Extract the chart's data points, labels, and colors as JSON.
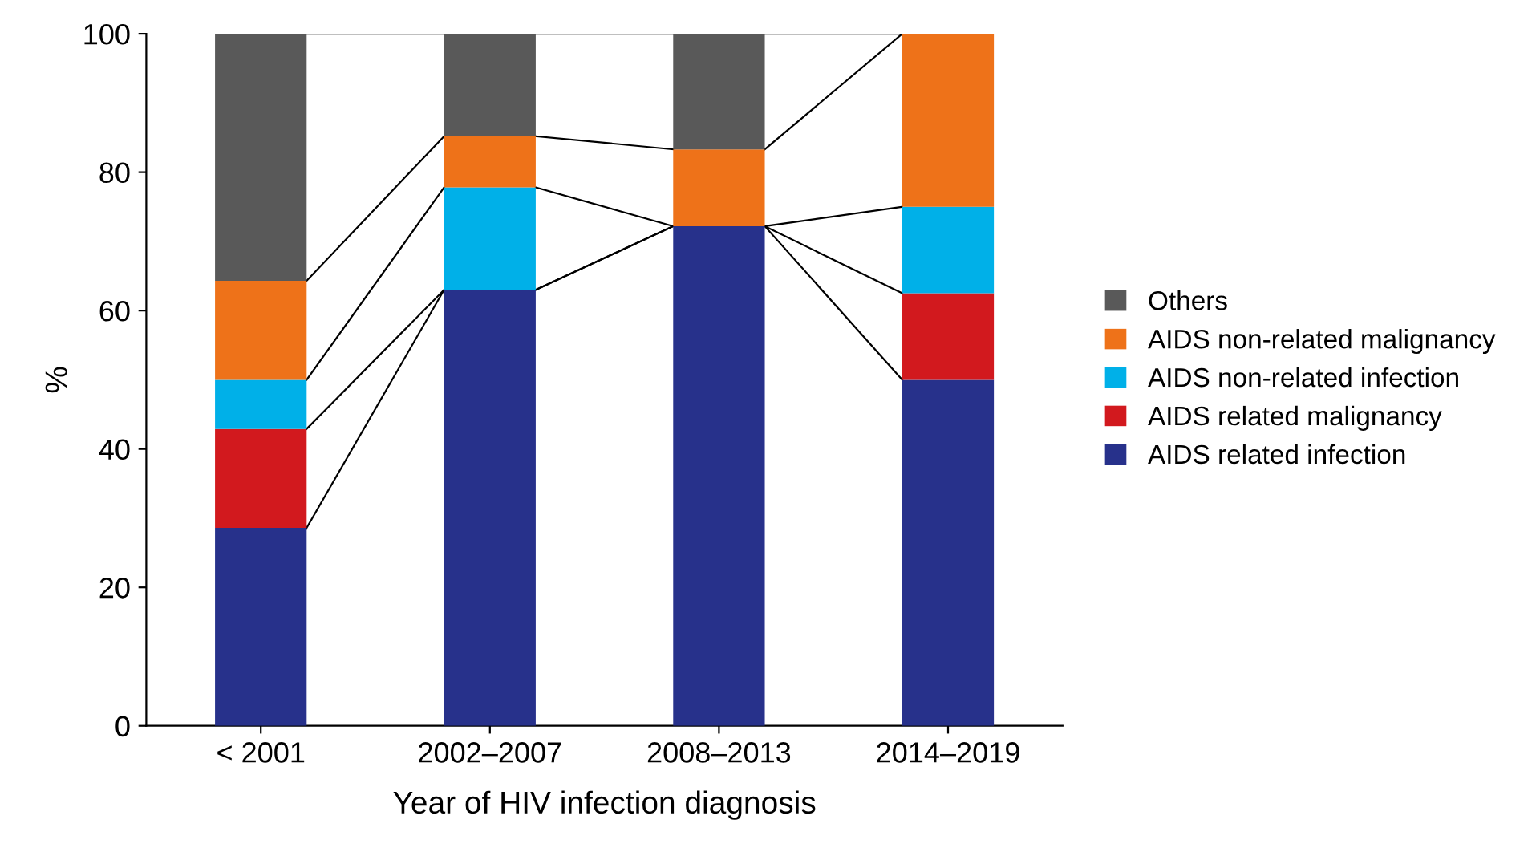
{
  "chart_data": {
    "type": "bar",
    "stacked": true,
    "xlabel": "Year of HIV infection diagnosis",
    "ylabel": "%",
    "categories": [
      "< 2001",
      "2002–2007",
      "2008–2013",
      "2014–2019"
    ],
    "series": [
      {
        "name": "AIDS related infection",
        "color": "#27318b",
        "values": [
          28.6,
          63.0,
          72.2,
          50.0
        ]
      },
      {
        "name": "AIDS related malignancy",
        "color": "#d2191e",
        "values": [
          14.3,
          0,
          0,
          12.5
        ]
      },
      {
        "name": "AIDS non-related infection",
        "color": "#00b0e8",
        "values": [
          7.1,
          14.8,
          0,
          12.5
        ]
      },
      {
        "name": "AIDS non-related malignancy",
        "color": "#ee7219",
        "values": [
          14.3,
          7.4,
          11.1,
          25.0
        ]
      },
      {
        "name": "Others",
        "color": "#595959",
        "values": [
          35.7,
          14.8,
          16.7,
          0
        ]
      }
    ],
    "ylim": [
      0,
      100
    ],
    "yticks": [
      0,
      20,
      40,
      60,
      80,
      100
    ],
    "grid": false,
    "legend": "right"
  }
}
